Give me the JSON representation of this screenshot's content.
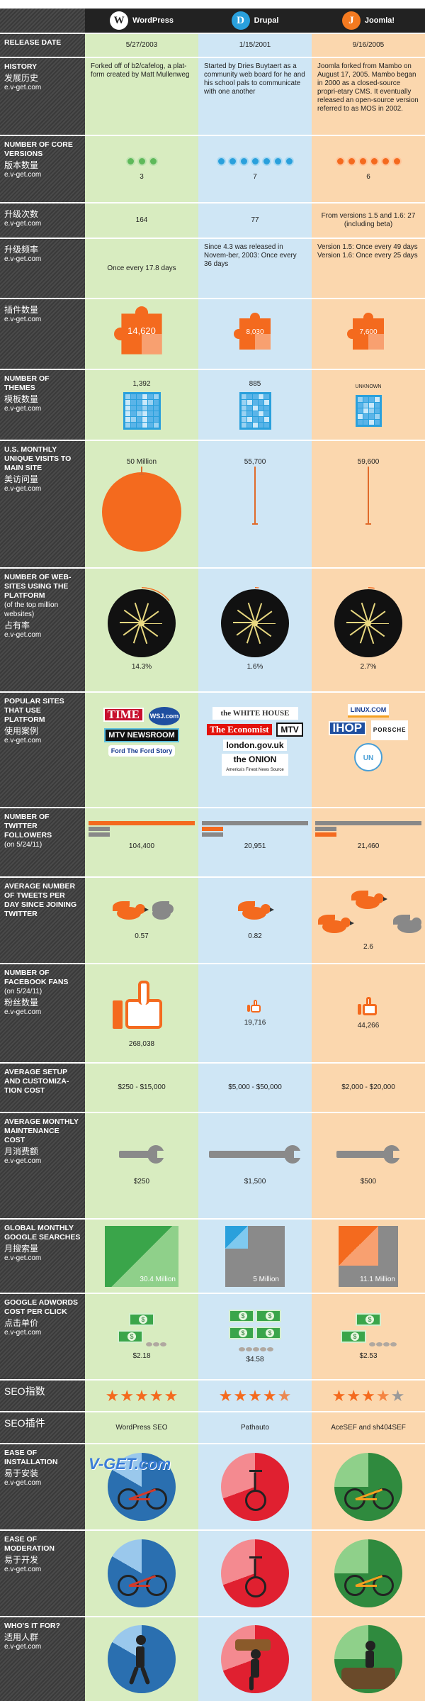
{
  "headers": {
    "wordpress": "WordPress",
    "drupal": "Drupal",
    "joomla": "Joomla!"
  },
  "icons": {
    "wordpress_logo": "W",
    "drupal_logo": "D",
    "joomla_logo": "J"
  },
  "site": "e.v-get.com",
  "rows": {
    "release": {
      "label": "Release Date",
      "wp": "5/27/2003",
      "dr": "1/15/2001",
      "jo": "9/16/2005"
    },
    "history": {
      "label": "History",
      "cn": "发展历史",
      "wp": "Forked off of b2/cafelog, a plat-form created by Matt Mullenweg",
      "dr": "Started by Dries Buytaert as a community web board for he and his school pals to communicate with one another",
      "jo": "Joomla forked from Mambo on August 17, 2005. Mambo began in 2000 as a closed-source propri-etary CMS. It eventually released an open-source version referred to as MOS in 2002."
    },
    "core_versions": {
      "label": "Number of Core Versions",
      "cn": "版本数量",
      "wp": "3",
      "dr": "7",
      "jo": "6"
    },
    "upgrades": {
      "label": "升级次数",
      "wp": "164",
      "dr": "77",
      "jo": "From versions 1.5 and 1.6: 27 (including beta)"
    },
    "upgrade_freq": {
      "label": "升级频率",
      "wp": "Once every 17.8 days",
      "dr": "Since 4.3 was released in Novem-ber, 2003: Once every 36 days",
      "jo": "Version 1.5: Once every 49 days\nVersion 1.6: Once every 25 days"
    },
    "plugins": {
      "label": "插件数量",
      "wp": "14,620",
      "dr": "8,030",
      "jo": "7,600"
    },
    "themes": {
      "label": "Number of Themes",
      "cn": "模板数量",
      "wp": "1,392",
      "dr": "885",
      "jo": "UNKNOWN"
    },
    "visits": {
      "label": "U.S. Monthly Unique Visits to Main Site",
      "cn": "美访问量",
      "wp": "50 Million",
      "dr": "55,700",
      "jo": "59,600"
    },
    "websites": {
      "label": "Number of Web-sites Using the Platform",
      "sub": "(of the top million websites)",
      "cn": "占有率",
      "wp": "14.3%",
      "dr": "1.6%",
      "jo": "2.7%"
    },
    "popular": {
      "label": "Popular Sites That Use Platform",
      "cn": "使用案例",
      "wp_sites": [
        "TIME",
        "WSJ.com",
        "MTV NEWSROOM",
        "Ford The Ford Story"
      ],
      "dr_sites": [
        "the WHITE HOUSE",
        "The Economist",
        "MTV",
        "london.gov.uk",
        "the ONION"
      ],
      "dr_onion_sub": "America's Finest News Source",
      "jo_sites": [
        "LINUX.COM",
        "IHOP",
        "PORSCHE",
        "UN"
      ]
    },
    "twitter": {
      "label": "Number of Twitter Followers",
      "sub": "(on 5/24/11)",
      "wp": "104,400",
      "dr": "20,951",
      "jo": "21,460"
    },
    "tweets": {
      "label": "Average Number of Tweets per Day Since Joining Twitter",
      "wp": "0.57",
      "dr": "0.82",
      "jo": "2.6"
    },
    "facebook": {
      "label": "Number of Facebook Fans",
      "sub": "(on 5/24/11)",
      "cn": "粉丝数量",
      "wp": "268,038",
      "dr": "19,716",
      "jo": "44,266"
    },
    "setup_cost": {
      "label": "Average Setup and Customiza-tion Cost",
      "wp": "$250 - $15,000",
      "dr": "$5,000 - $50,000",
      "jo": "$2,000 - $20,000"
    },
    "maintenance": {
      "label": "Average Monthly Maintenance Cost",
      "cn": "月消费额",
      "wp": "$250",
      "dr": "$1,500",
      "jo": "$500"
    },
    "searches": {
      "label": "Global Monthly Google Searches",
      "cn": "月搜索量",
      "wp": "30.4 Million",
      "dr": "5 Million",
      "jo": "11.1 Million"
    },
    "adwords": {
      "label": "Google AdWords Cost per Click",
      "cn": "点击单价",
      "wp": "$2.18",
      "dr": "$4.58",
      "jo": "$2.53"
    },
    "seo": {
      "label": "SEO指数",
      "wp_stars": 5,
      "dr_stars": 4.5,
      "jo_stars": 3.5
    },
    "seo_plugin": {
      "label": "SEO插件",
      "wp": "WordPress SEO",
      "dr": "Pathauto",
      "jo": "AceSEF and sh404SEF"
    },
    "install": {
      "label": "Ease of Installation",
      "cn": "易于安装"
    },
    "moderation": {
      "label": "Ease of Moderation",
      "cn": "易于开发"
    },
    "for_who": {
      "label": "Who's It For?",
      "cn": "适用人群"
    }
  },
  "watermark": "V-GET.com",
  "colors": {
    "wordpress": "#d8ecc0",
    "drupal": "#cfe6f5",
    "joomla": "#fbd7ae",
    "accent": "#f46a1e",
    "label_bg": "#444444"
  }
}
